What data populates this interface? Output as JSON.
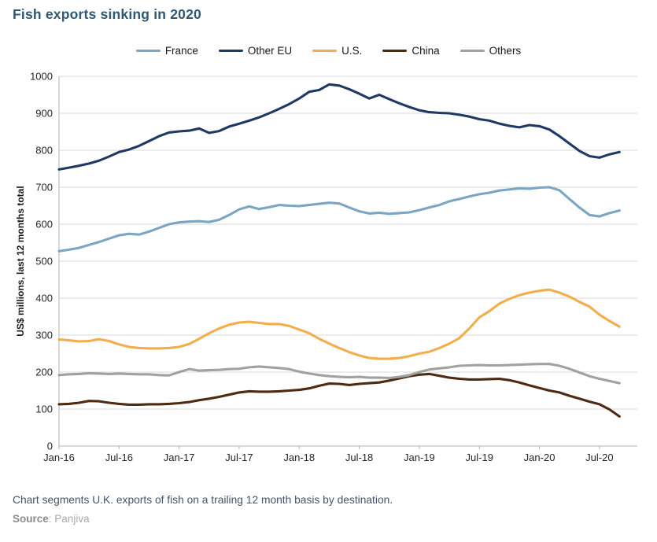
{
  "page": {
    "title": "Fish exports sinking in 2020",
    "caption": "Chart segments U.K. exports of fish on a trailing 12 month basis by destination.",
    "source_label": "Source",
    "source_separator": ": ",
    "source_name": "Panjiva"
  },
  "colors": {
    "title": "#2d5876",
    "caption": "#44546a",
    "gridline": "#d9d9d9",
    "axis": "#b3b3b3",
    "tick_label": "#262626"
  },
  "chart_data": {
    "type": "line",
    "title": "Fish exports sinking in 2020",
    "xlabel": "",
    "ylabel": "US$ millions, last 12 months total",
    "ylim": [
      0,
      1000
    ],
    "y_tick_step": 100,
    "grid": "horizontal",
    "legend_position": "top-center",
    "x_unit": "month",
    "x_start": "Jan-16",
    "x_end": "Sep-20",
    "n_points": 57,
    "x_tick_every": 6,
    "x_ticklabels": [
      "Jan-16",
      "Jul-16",
      "Jan-17",
      "Jul-17",
      "Jan-18",
      "Jul-18",
      "Jan-19",
      "Jul-19",
      "Jan-20",
      "Jul-20"
    ],
    "series": [
      {
        "name": "France",
        "color": "#7aa6c4",
        "values": [
          527,
          531,
          536,
          544,
          552,
          561,
          570,
          574,
          572,
          580,
          590,
          600,
          605,
          607,
          608,
          606,
          612,
          625,
          640,
          648,
          641,
          646,
          652,
          650,
          649,
          652,
          655,
          658,
          656,
          645,
          635,
          629,
          631,
          628,
          630,
          632,
          638,
          645,
          652,
          662,
          668,
          675,
          681,
          685,
          691,
          694,
          697,
          696,
          699,
          700,
          692,
          668,
          645,
          625,
          621,
          630,
          637
        ]
      },
      {
        "name": "Other EU",
        "color": "#1f3864",
        "values": [
          748,
          753,
          758,
          764,
          772,
          783,
          795,
          802,
          812,
          825,
          838,
          848,
          851,
          853,
          859,
          847,
          852,
          864,
          872,
          880,
          889,
          900,
          912,
          925,
          940,
          958,
          963,
          978,
          975,
          965,
          953,
          940,
          950,
          938,
          927,
          917,
          908,
          903,
          901,
          900,
          896,
          891,
          884,
          880,
          872,
          866,
          862,
          868,
          865,
          856,
          838,
          818,
          798,
          784,
          780,
          789,
          795
        ]
      },
      {
        "name": "U.S.",
        "color": "#f2ae4c",
        "values": [
          288,
          286,
          283,
          284,
          289,
          284,
          275,
          268,
          265,
          264,
          264,
          265,
          268,
          276,
          290,
          305,
          318,
          328,
          334,
          336,
          333,
          330,
          330,
          325,
          315,
          305,
          290,
          277,
          265,
          254,
          245,
          238,
          236,
          236,
          238,
          243,
          250,
          255,
          265,
          277,
          292,
          318,
          348,
          365,
          385,
          398,
          408,
          415,
          420,
          423,
          415,
          404,
          390,
          377,
          355,
          338,
          323
        ]
      },
      {
        "name": "China",
        "color": "#4e2a12",
        "values": [
          113,
          114,
          117,
          122,
          121,
          117,
          114,
          112,
          112,
          113,
          113,
          114,
          116,
          119,
          124,
          128,
          133,
          139,
          145,
          148,
          147,
          147,
          148,
          150,
          152,
          156,
          163,
          169,
          168,
          165,
          168,
          170,
          172,
          177,
          183,
          189,
          193,
          195,
          190,
          185,
          182,
          180,
          180,
          181,
          182,
          178,
          172,
          164,
          157,
          150,
          145,
          136,
          128,
          120,
          113,
          99,
          80
        ]
      },
      {
        "name": "Others",
        "color": "#a1a19f",
        "values": [
          192,
          194,
          195,
          197,
          196,
          195,
          196,
          195,
          194,
          194,
          192,
          191,
          200,
          208,
          204,
          205,
          206,
          208,
          209,
          213,
          215,
          213,
          211,
          208,
          201,
          196,
          192,
          189,
          187,
          186,
          187,
          185,
          185,
          184,
          187,
          192,
          200,
          207,
          210,
          213,
          217,
          218,
          219,
          218,
          218,
          219,
          220,
          221,
          222,
          222,
          217,
          209,
          199,
          189,
          182,
          176,
          170
        ]
      }
    ]
  }
}
